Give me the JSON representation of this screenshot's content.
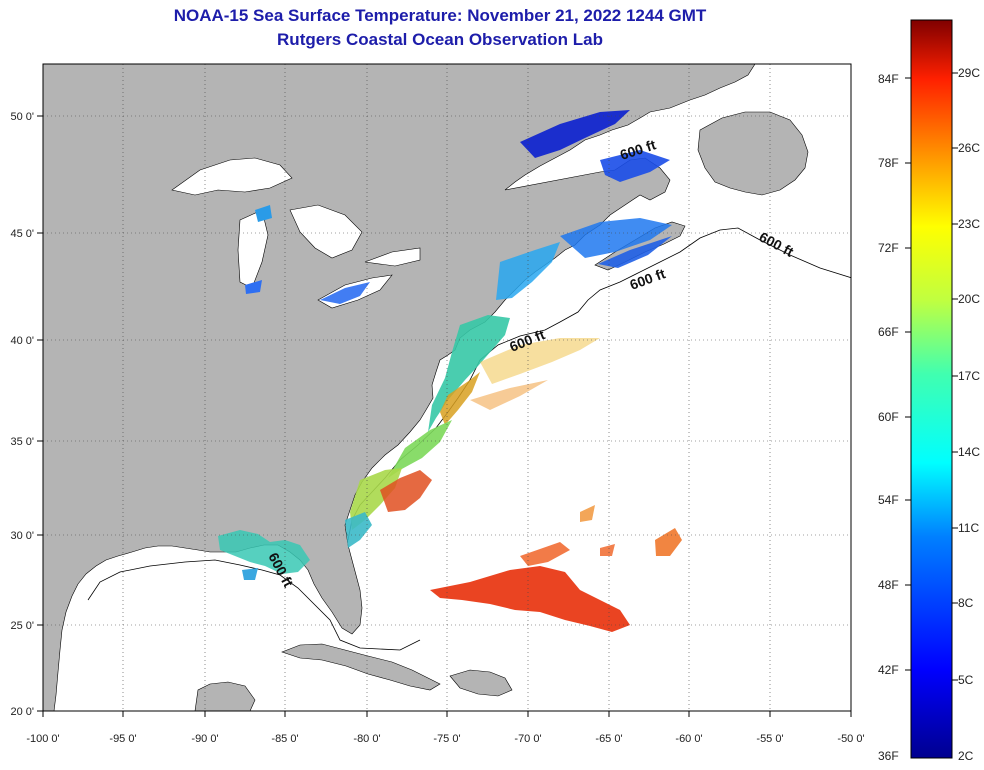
{
  "title": "NOAA-15 Sea Surface Temperature:  November 21, 2022 1244 GMT",
  "subtitle": "Rutgers Coastal Ocean Observation Lab",
  "lat_ticks": [
    "50 0'",
    "45 0'",
    "40 0'",
    "35 0'",
    "30 0'",
    "25 0'",
    "20 0'"
  ],
  "lon_ticks": [
    "-100 0'",
    "-95 0'",
    "-90 0'",
    "-85 0'",
    "-80 0'",
    "-75 0'",
    "-70 0'",
    "-65 0'",
    "-60 0'",
    "-55 0'",
    "-50 0'"
  ],
  "depth_contour_label": "600 ft",
  "colorbar": {
    "fahrenheit": [
      "84F",
      "78F",
      "72F",
      "66F",
      "60F",
      "54F",
      "48F",
      "42F",
      "36F"
    ],
    "celsius": [
      "29C",
      "26C",
      "23C",
      "20C",
      "17C",
      "14C",
      "11C",
      "8C",
      "5C",
      "2C"
    ]
  },
  "colors": {
    "land": "#b4b4b4",
    "ocean": "#ffffff",
    "title": "#1d1daa"
  }
}
